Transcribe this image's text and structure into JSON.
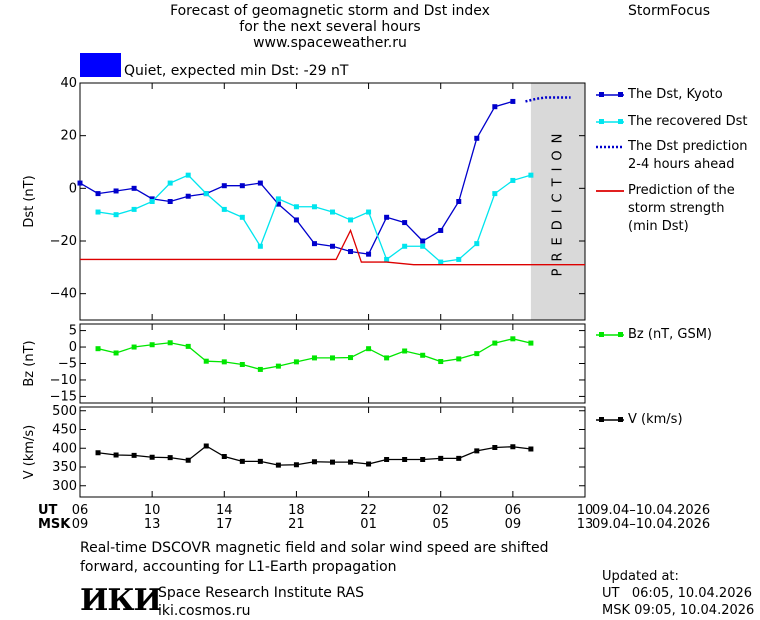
{
  "header": {
    "title_line1": "Forecast of geomagnetic storm and Dst index",
    "title_line2": "for the next several hours",
    "website": "www.spaceweather.ru",
    "brand": "StormFocus"
  },
  "status": {
    "text": "Quiet, expected min Dst: -29 nT",
    "color": "#0000ff"
  },
  "chart_data": [
    {
      "type": "line",
      "ylabel": "Dst (nT)",
      "ylim": [
        -50,
        40
      ],
      "yticks": [
        40,
        20,
        0,
        -20,
        -40
      ],
      "xlim": [
        6,
        34
      ],
      "prediction_band_label": "PREDICTION",
      "prediction_band_x": [
        31,
        34
      ],
      "series": [
        {
          "name": "The Dst, Kyoto",
          "color": "#0000cc",
          "marker": "square",
          "x": [
            6,
            7,
            8,
            9,
            10,
            11,
            12,
            13,
            14,
            15,
            16,
            17,
            18,
            19,
            20,
            21,
            22,
            23,
            24,
            25,
            26,
            27,
            28,
            29,
            30,
            31
          ],
          "y": [
            2,
            -2,
            -1,
            0,
            -4,
            -5,
            -3,
            -2,
            1,
            1,
            2,
            -6,
            -12,
            -21,
            -22,
            -24,
            -25,
            -11,
            -13,
            -20,
            -16,
            -5,
            19,
            31,
            33,
            null
          ]
        },
        {
          "name": "The recovered Dst",
          "color": "#00e5ee",
          "marker": "square",
          "x": [
            7,
            8,
            9,
            10,
            11,
            12,
            13,
            14,
            15,
            16,
            17,
            18,
            19,
            20,
            21,
            22,
            23,
            24,
            25,
            26,
            27,
            28,
            29,
            30,
            31
          ],
          "y": [
            -9,
            -10,
            -8,
            -5,
            2,
            5,
            -2,
            -8,
            -11,
            -22,
            -4,
            -7,
            -7,
            -9,
            -12,
            -9,
            -27,
            -22,
            -22,
            -28,
            -27,
            -21,
            -2,
            3,
            5
          ]
        },
        {
          "name": "The Dst prediction 2-4 hours ahead",
          "color": "#0000cc",
          "style": "dotted",
          "x": [
            30.7,
            31.3,
            31.8,
            32.3,
            32.8,
            33.2
          ],
          "y": [
            33,
            34,
            34.5,
            34.5,
            34.5,
            34.5
          ]
        },
        {
          "name": "Prediction of the storm strength (min Dst)",
          "color": "#dd0000",
          "x": [
            6,
            20.2,
            21,
            21.6,
            23,
            24.5,
            25,
            34
          ],
          "y": [
            -27,
            -27,
            -16,
            -28,
            -28,
            -29,
            -29,
            -29
          ]
        }
      ]
    },
    {
      "type": "line",
      "ylabel": "Bz (nT)",
      "ylim": [
        -17,
        7
      ],
      "yticks": [
        5,
        0,
        -5,
        -10,
        -15
      ],
      "xlim": [
        6,
        34
      ],
      "series": [
        {
          "name": "Bz (nT, GSM)",
          "color": "#00e600",
          "marker": "square",
          "x": [
            7,
            8,
            9,
            10,
            11,
            12,
            13,
            14,
            15,
            16,
            17,
            18,
            19,
            20,
            21,
            22,
            23,
            24,
            25,
            26,
            27,
            28,
            29,
            30,
            31
          ],
          "y": [
            -0.5,
            -1.8,
            0,
            0.7,
            1.3,
            0.2,
            -4.3,
            -4.5,
            -5.3,
            -6.8,
            -5.8,
            -4.5,
            -3.3,
            -3.3,
            -3.2,
            -0.5,
            -3.3,
            -1.2,
            -2.5,
            -4.4,
            -3.6,
            -2,
            1.2,
            2.5,
            1.2
          ]
        }
      ]
    },
    {
      "type": "line",
      "ylabel": "V (km/s)",
      "ylim": [
        270,
        510
      ],
      "yticks": [
        500,
        450,
        400,
        350,
        300
      ],
      "xlim": [
        6,
        34
      ],
      "series": [
        {
          "name": "V (km/s)",
          "color": "#000000",
          "marker": "square",
          "x": [
            7,
            8,
            9,
            10,
            11,
            12,
            13,
            14,
            15,
            16,
            17,
            18,
            19,
            20,
            21,
            22,
            23,
            24,
            25,
            26,
            27,
            28,
            29,
            30,
            31
          ],
          "y": [
            388,
            382,
            381,
            376,
            375,
            368,
            406,
            378,
            365,
            365,
            355,
            356,
            364,
            363,
            363,
            358,
            370,
            370,
            370,
            373,
            373,
            393,
            402,
            404,
            398
          ]
        }
      ]
    }
  ],
  "xaxis": {
    "ut_label": "UT",
    "msk_label": "MSK",
    "ut_ticks": [
      "06",
      "10",
      "14",
      "18",
      "22",
      "02",
      "06",
      "10"
    ],
    "msk_ticks": [
      "09",
      "13",
      "17",
      "21",
      "01",
      "05",
      "09",
      "13"
    ],
    "tick_x": [
      6,
      10,
      14,
      18,
      22,
      26,
      30,
      34
    ],
    "ut_range": "09.04–10.04.2026",
    "msk_range": "09.04–10.04.2026"
  },
  "legend": {
    "dst_kyoto": "The Dst, Kyoto",
    "recovered": "The recovered Dst",
    "prediction_l1": "The Dst prediction",
    "prediction_l2": "2-4 hours ahead",
    "strength_l1": "Prediction of the",
    "strength_l2": "storm strength",
    "strength_l3": "(min Dst)",
    "bz": "Bz (nT, GSM)",
    "v": "V (km/s)"
  },
  "footer": {
    "note_line1": "Real-time DSCOVR magnetic field and solar wind speed are shifted",
    "note_line2": "forward, accounting for L1-Earth propagation",
    "logo_text": "ИКИ",
    "institute": "Space Research Institute RAS",
    "institute_url": "iki.cosmos.ru",
    "updated_label": "Updated at:",
    "updated_ut": "UT   06:05, 10.04.2026",
    "updated_msk": "MSK 09:05, 10.04.2026"
  }
}
